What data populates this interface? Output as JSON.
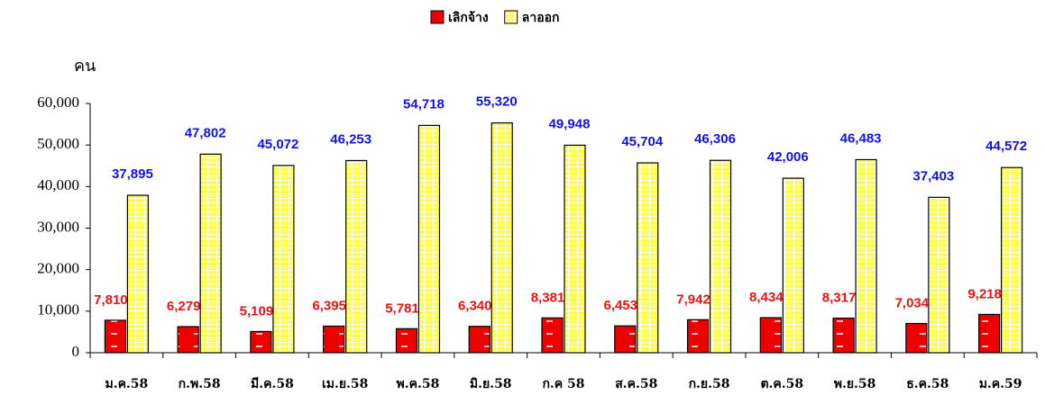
{
  "chart_data": {
    "type": "bar",
    "ylabel": "คน",
    "categories": [
      "ม.ค.58",
      "ก.พ.58",
      "มี.ค.58",
      "เม.ย.58",
      "พ.ค.58",
      "มิ.ย.58",
      "ก.ค 58",
      "ส.ค.58",
      "ก.ย.58",
      "ต.ค.58",
      "พ.ย.58",
      "ธ.ค.58",
      "ม.ค.59"
    ],
    "series": [
      {
        "name": "เลิกจ้าง",
        "color": "#ee0000",
        "label_color": "#ee1111",
        "values": [
          7810,
          6279,
          5109,
          6395,
          5781,
          6340,
          8381,
          6453,
          7942,
          8434,
          8317,
          7034,
          9218
        ],
        "value_labels": [
          "7,810",
          "6,279",
          "5,109",
          "6,395",
          "5,781",
          "6,340",
          "8,381",
          "6,453",
          "7,942",
          "8,434",
          "8,317",
          "7,034",
          "9,218"
        ]
      },
      {
        "name": "ลาออก",
        "color": "#ffff44",
        "label_color": "#1111ee",
        "values": [
          37895,
          47802,
          45072,
          46253,
          54718,
          55320,
          49948,
          45704,
          46306,
          42006,
          46483,
          37403,
          44572
        ],
        "value_labels": [
          "37,895",
          "47,802",
          "45,072",
          "46,253",
          "54,718",
          "55,320",
          "49,948",
          "45,704",
          "46,306",
          "42,006",
          "46,483",
          "37,403",
          "44,572"
        ]
      }
    ],
    "ylim": [
      0,
      60000
    ],
    "yticks": [
      0,
      {
        "value": 10000,
        "label": "10,000"
      },
      {
        "value": 20000,
        "label": "20,000"
      },
      {
        "value": 30000,
        "label": "30,000"
      },
      {
        "value": 40000,
        "label": "40,000"
      },
      {
        "value": 50000,
        "label": "50,000"
      },
      {
        "value": 60000,
        "label": "60,000"
      }
    ],
    "legend": "top"
  }
}
